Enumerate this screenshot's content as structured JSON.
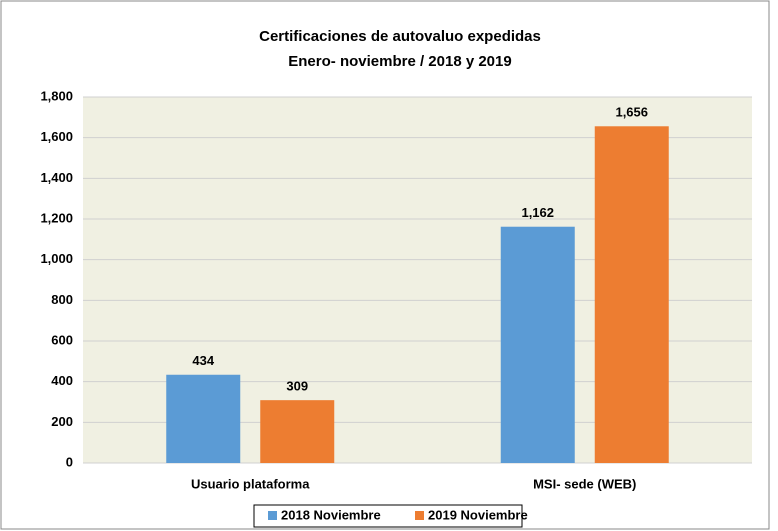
{
  "chart_data": {
    "type": "bar",
    "title": "Certificaciones de autovaluo expedidas",
    "subtitle": "Enero- noviembre / 2018 y 2019",
    "categories": [
      "Usuario plataforma",
      "MSI- sede (WEB)"
    ],
    "series": [
      {
        "name": "2018 Noviembre",
        "color": "#5b9bd5",
        "values": [
          434,
          1162
        ],
        "value_labels": [
          "434",
          "1,162"
        ]
      },
      {
        "name": "2019 Noviembre",
        "color": "#ed7d31",
        "values": [
          309,
          1656
        ],
        "value_labels": [
          "309",
          "1,656"
        ]
      }
    ],
    "ylim": [
      0,
      1800
    ],
    "yticks": [
      0,
      200,
      400,
      600,
      800,
      {
        "value": 1000,
        "label": "1,000"
      },
      {
        "value": 1200,
        "label": "1,200"
      },
      {
        "value": 1400,
        "label": "1,400"
      },
      {
        "value": 1600,
        "label": "1,600"
      },
      {
        "value": 1800,
        "label": "1,800"
      }
    ],
    "grid": true,
    "legend": "bottom"
  }
}
